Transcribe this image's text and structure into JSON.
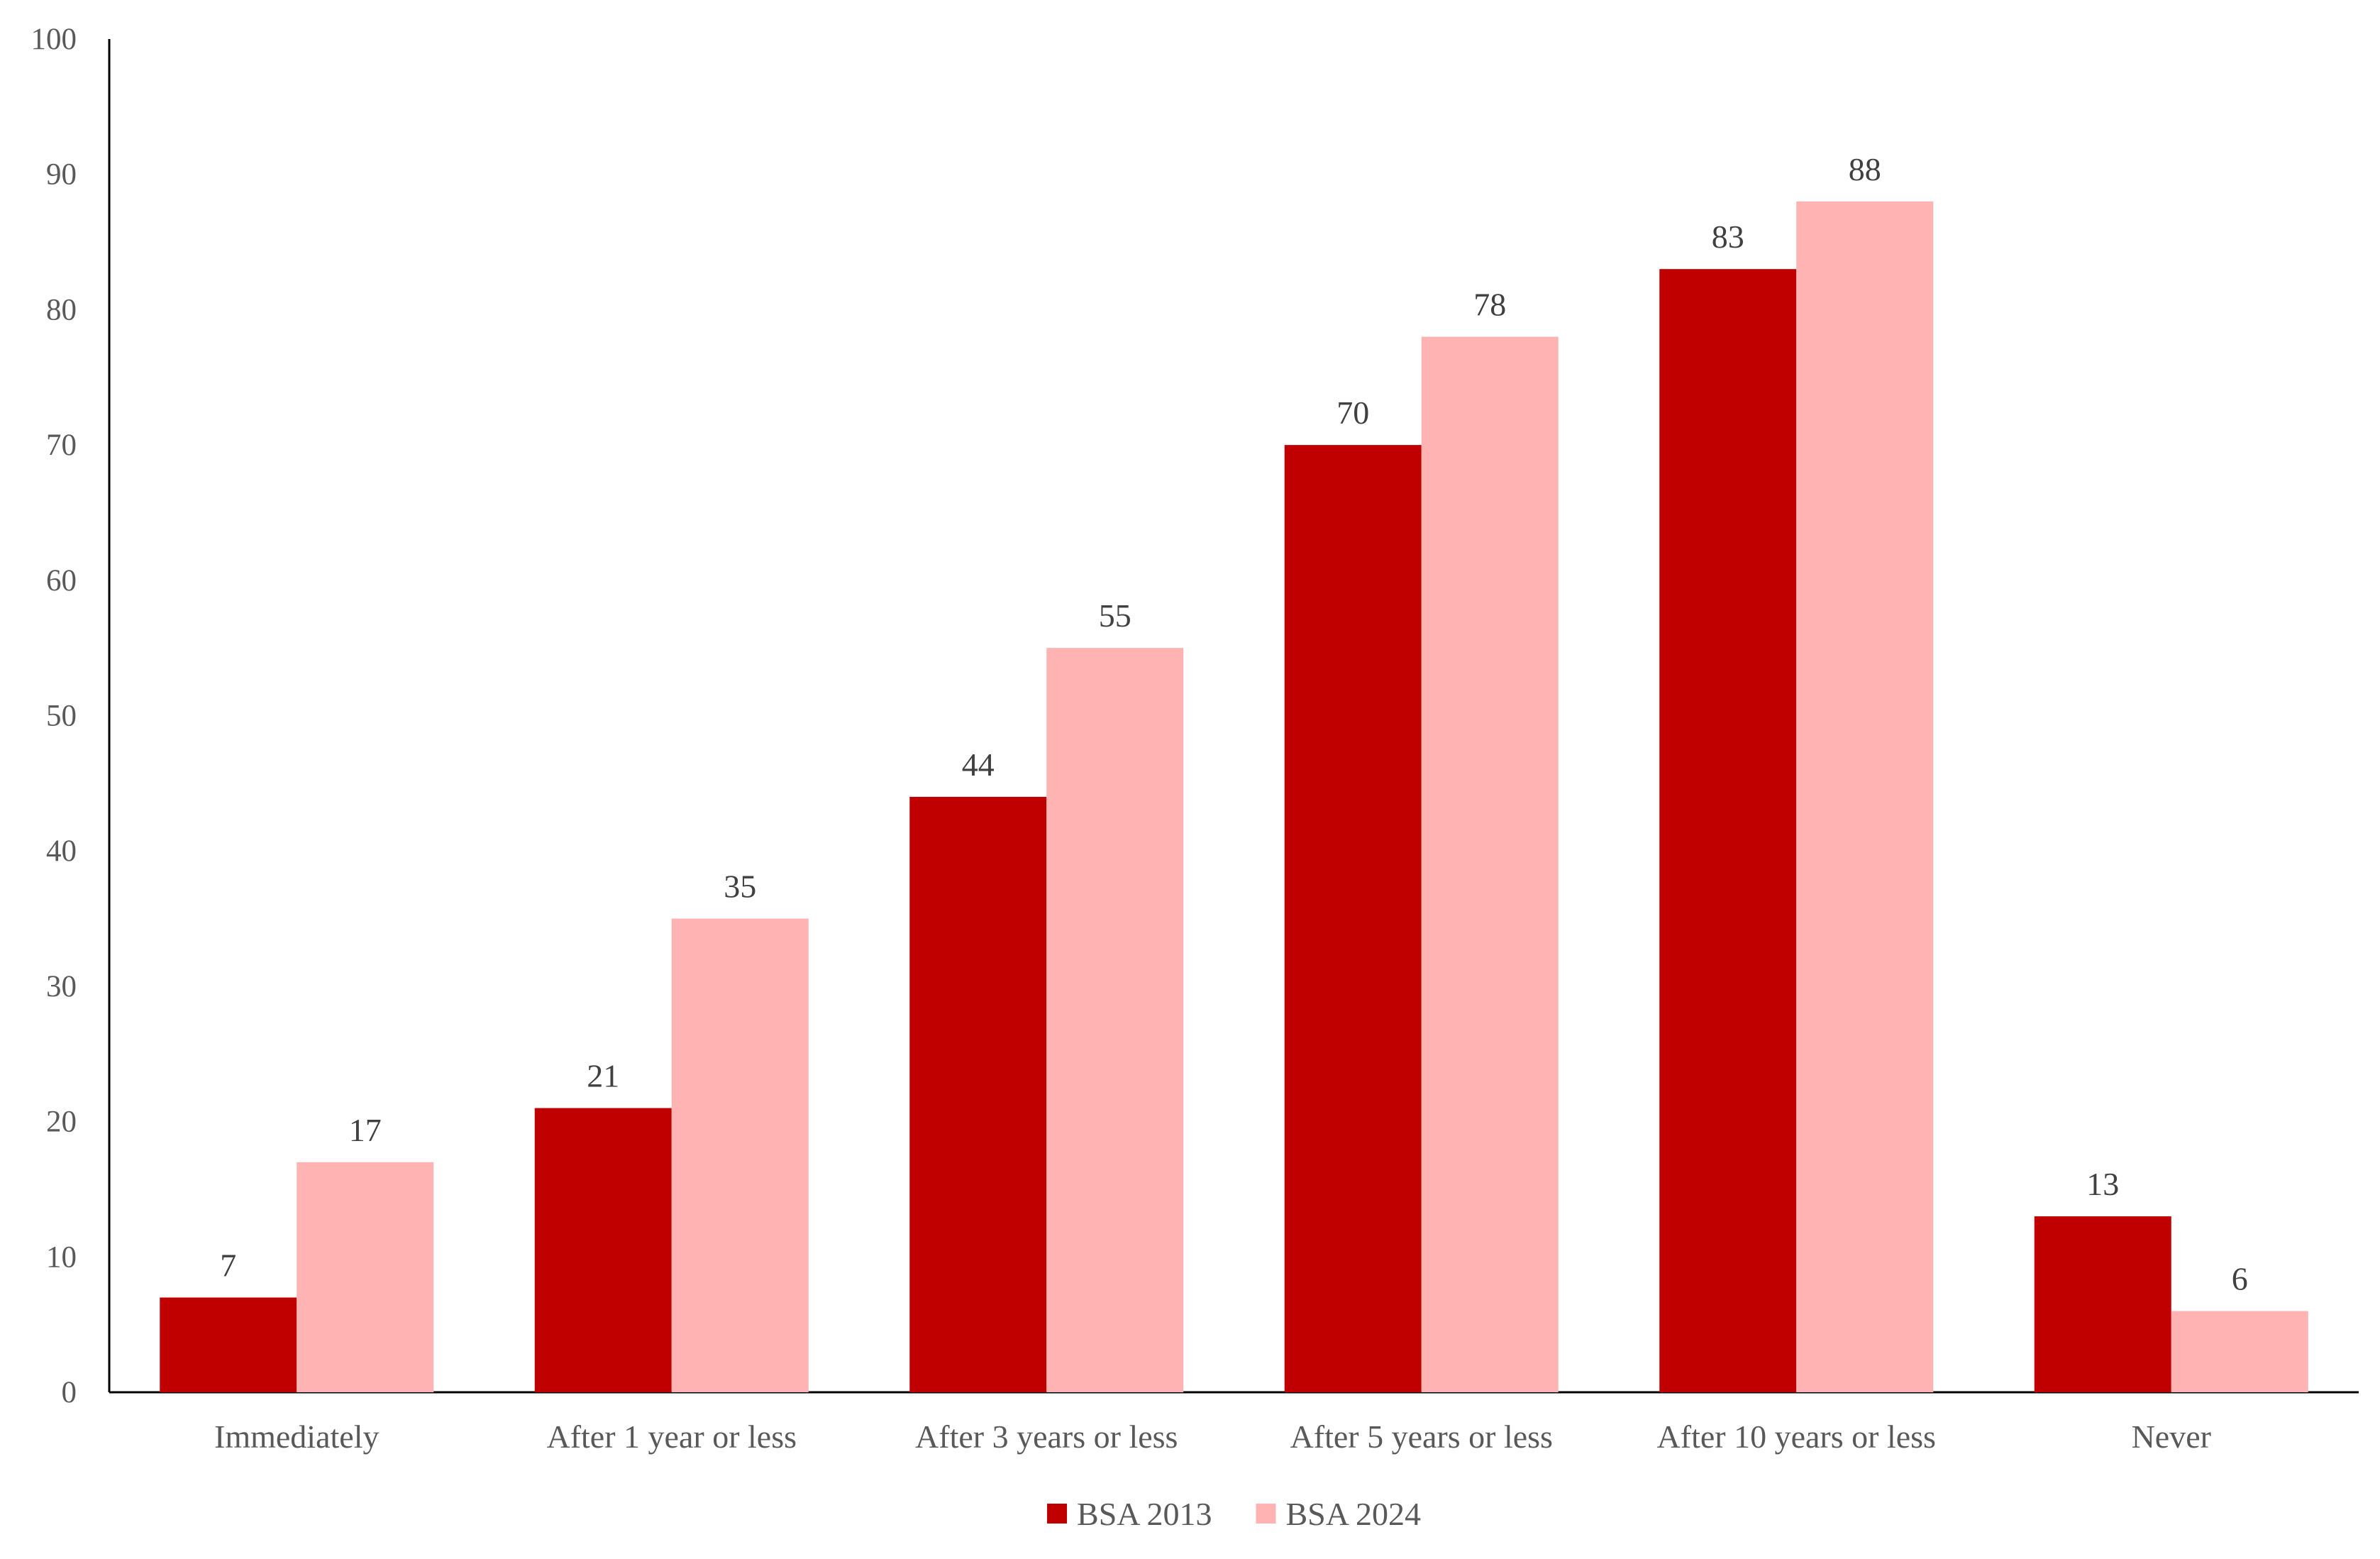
{
  "chart_data": {
    "type": "bar",
    "title": "",
    "xlabel": "",
    "ylabel": "",
    "ylim": [
      0,
      100
    ],
    "yticks": [
      0,
      10,
      20,
      30,
      40,
      50,
      60,
      70,
      80,
      90,
      100
    ],
    "grid": false,
    "legend_position": "bottom",
    "categories": [
      "Immediately",
      "After 1 year or less",
      "After 3 years or less",
      "After 5 years or less",
      "After 10 years or less",
      "Never"
    ],
    "series": [
      {
        "name": "BSA 2013",
        "color": "#C00000",
        "values": [
          7,
          21,
          44,
          70,
          83,
          13
        ]
      },
      {
        "name": "BSA 2024",
        "color": "#FFB3B3",
        "values": [
          17,
          35,
          55,
          78,
          88,
          6
        ]
      }
    ]
  }
}
